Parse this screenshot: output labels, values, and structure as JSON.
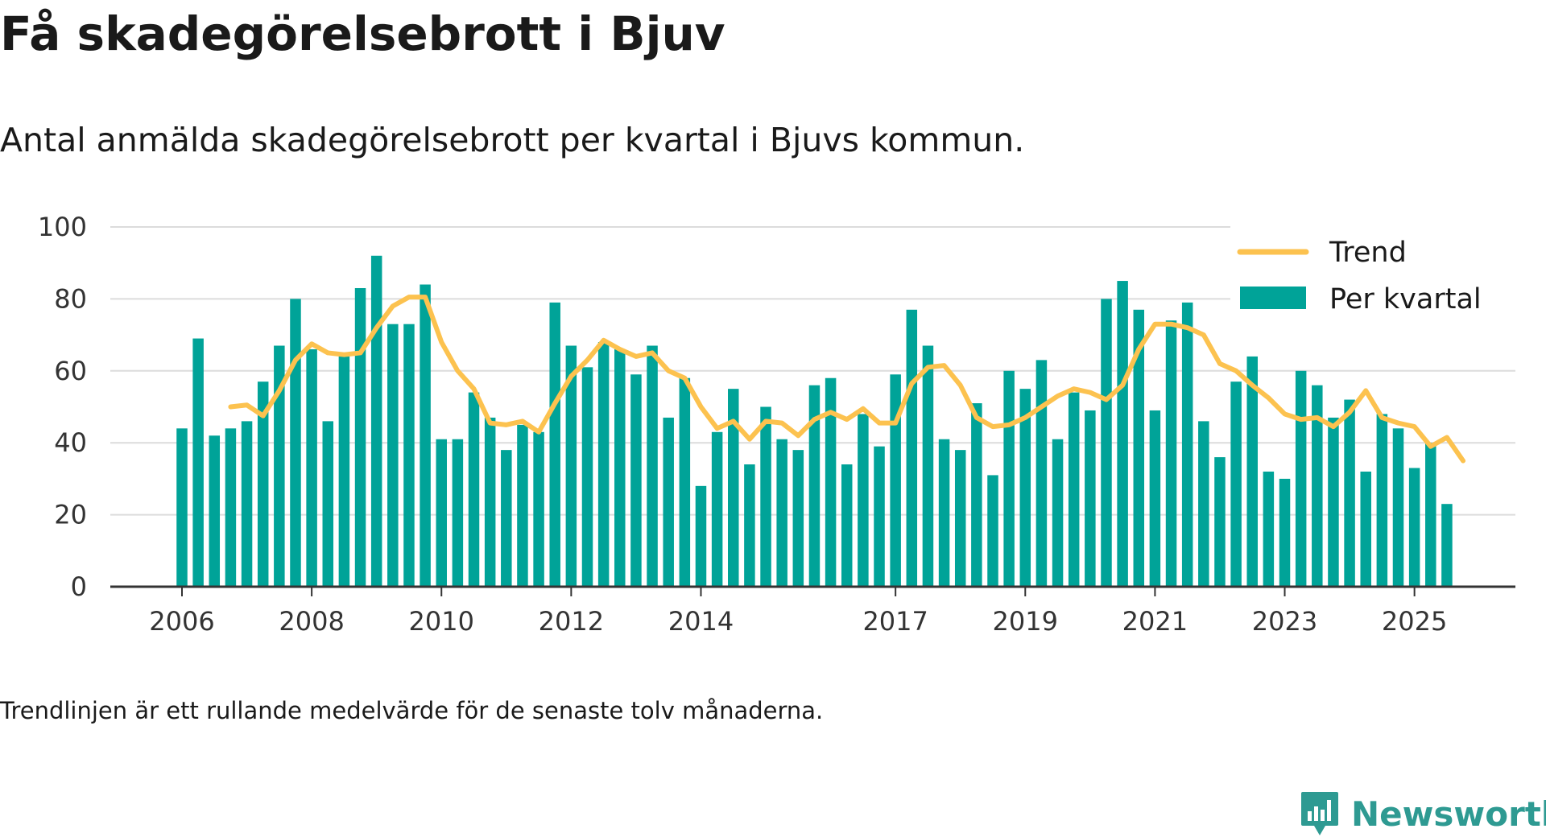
{
  "header": {
    "title": "Få skadegörelsebrott i Bjuv",
    "subtitle": "Antal anmälda skadegörelsebrott per kvartal i Bjuvs kommun."
  },
  "footer": {
    "note": "Trendlinjen är ett rullande medelvärde för de senaste tolv månaderna.",
    "brand": "Newsworthy"
  },
  "colors": {
    "bar": "#00a398",
    "trend": "#fcc24f",
    "grid": "#dcdcdc",
    "axis": "#333333",
    "brand": "#2e9a92"
  },
  "chart_data": {
    "type": "bar",
    "ylim": [
      0,
      100
    ],
    "yticks": [
      0,
      20,
      40,
      60,
      80,
      100
    ],
    "xticks": [
      {
        "label": "2006",
        "year": 2006
      },
      {
        "label": "2008",
        "year": 2008
      },
      {
        "label": "2010",
        "year": 2010
      },
      {
        "label": "2012",
        "year": 2012
      },
      {
        "label": "2014",
        "year": 2014
      },
      {
        "label": "2017",
        "year": 2017
      },
      {
        "label": "2019",
        "year": 2019
      },
      {
        "label": "2021",
        "year": 2021
      },
      {
        "label": "2023",
        "year": 2023
      },
      {
        "label": "2025",
        "year": 2025
      }
    ],
    "x_start_year": 2006,
    "legend": [
      {
        "key": "trend",
        "label": "Trend",
        "kind": "line"
      },
      {
        "key": "per_kvartal",
        "label": "Per kvartal",
        "kind": "bar"
      }
    ],
    "series": [
      {
        "name": "Per kvartal",
        "values": [
          44,
          69,
          42,
          44,
          46,
          57,
          67,
          80,
          66,
          46,
          64,
          83,
          92,
          73,
          73,
          84,
          41,
          41,
          54,
          47,
          38,
          45,
          43,
          79,
          67,
          61,
          68,
          66,
          59,
          67,
          47,
          58,
          28,
          43,
          55,
          34,
          50,
          41,
          38,
          56,
          58,
          34,
          48,
          39,
          59,
          77,
          67,
          41,
          38,
          51,
          31,
          60,
          55,
          63,
          41,
          54,
          49,
          80,
          85,
          77,
          49,
          74,
          79,
          46,
          36,
          57,
          64,
          32,
          30,
          60,
          56,
          47,
          52,
          32,
          48,
          44,
          33,
          40,
          23
        ]
      },
      {
        "name": "Trend",
        "start_index": 3,
        "values": [
          50,
          50.5,
          47.5,
          54.5,
          63,
          67.5,
          65,
          64.5,
          65,
          72,
          78,
          80.5,
          80.5,
          68,
          60,
          55,
          45.5,
          45,
          46,
          43,
          51,
          58.5,
          63,
          68.5,
          66,
          64,
          65,
          60,
          58,
          50,
          44,
          46,
          41,
          46,
          45.5,
          42,
          46.5,
          48.5,
          46.5,
          49.5,
          45.5,
          45.5,
          56.5,
          61,
          61.5,
          56,
          47,
          44.5,
          45,
          47,
          50,
          53,
          55,
          54,
          52,
          56,
          66,
          73,
          73,
          72,
          70,
          62,
          60,
          56,
          52.5,
          48,
          46.5,
          47,
          44.5,
          48.5,
          54.5,
          47,
          45.5,
          44.5,
          39,
          41.5,
          35
        ]
      }
    ]
  }
}
